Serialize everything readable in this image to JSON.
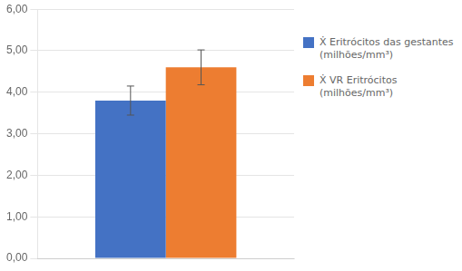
{
  "chart_data": {
    "type": "bar",
    "categories": [
      null
    ],
    "series": [
      {
        "name": "Ẋ Eritrócitos das gestantes\n(milhões/mm³)",
        "color": "#4472C4",
        "values": [
          3.8
        ],
        "errors": [
          0.35
        ]
      },
      {
        "name": "Ẋ VR Eritrócitos\n(milhões/mm³)",
        "color": "#ED7D31",
        "values": [
          4.6
        ],
        "errors": [
          0.42
        ]
      }
    ],
    "ylim": [
      0,
      6.0
    ],
    "yticks": [
      {
        "value": 0,
        "label": "0,00"
      },
      {
        "value": 1,
        "label": "1,00"
      },
      {
        "value": 2,
        "label": "2,00"
      },
      {
        "value": 3,
        "label": "3,00"
      },
      {
        "value": 4,
        "label": "4,00"
      },
      {
        "value": 5,
        "label": "5,00"
      },
      {
        "value": 6,
        "label": "6,00"
      }
    ],
    "grid": true,
    "legend": "right",
    "tick_labels": "y"
  }
}
